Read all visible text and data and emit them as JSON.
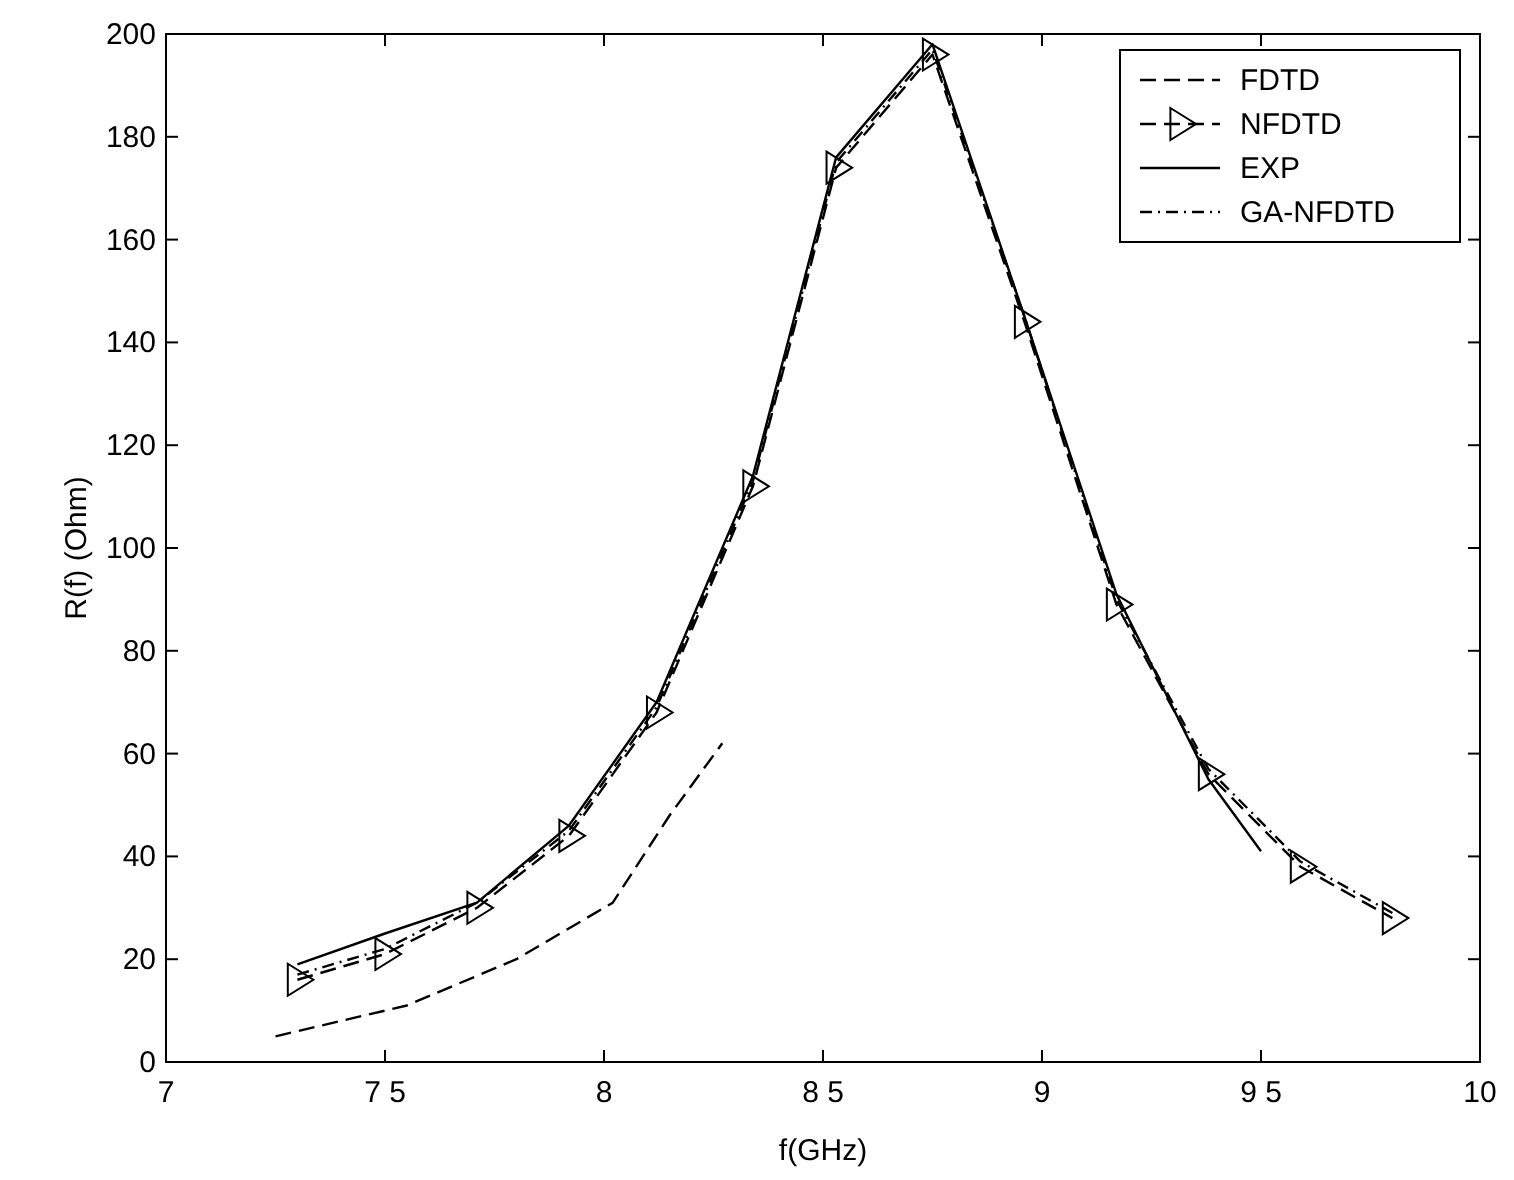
{
  "chart_data": {
    "type": "line",
    "xlabel": "f(GHz)",
    "ylabel": "R(f) (Ohm)",
    "xlim": [
      7,
      10
    ],
    "ylim": [
      0,
      200
    ],
    "xticks": [
      7,
      {
        "value": 7.5,
        "label": "7 5"
      },
      8,
      {
        "value": 8.5,
        "label": "8 5"
      },
      9,
      {
        "value": 9.5,
        "label": "9 5"
      },
      10
    ],
    "yticks": [
      0,
      20,
      40,
      60,
      80,
      100,
      120,
      140,
      160,
      180,
      200
    ],
    "grid": false,
    "legend": "top right",
    "series": [
      {
        "name": "FDTD",
        "color": "#000000",
        "line_style": "dashed",
        "marker": "none",
        "x": [
          7.25,
          7.4,
          7.55,
          7.8,
          8.02,
          8.15,
          8.27
        ],
        "values": [
          5,
          8,
          11,
          20,
          31,
          48,
          62
        ]
      },
      {
        "name": "NFDTD",
        "color": "#000000",
        "line_style": "dashed",
        "marker": "triangle",
        "x": [
          7.3,
          7.5,
          7.71,
          7.92,
          8.12,
          8.34,
          8.53,
          8.75,
          8.96,
          9.17,
          9.38,
          9.59,
          9.8
        ],
        "values": [
          16,
          21,
          30,
          44,
          68,
          112,
          174,
          196,
          144,
          89,
          56,
          38,
          28
        ]
      },
      {
        "name": "EXP",
        "color": "#000000",
        "line_style": "solid",
        "marker": "none",
        "x": [
          7.3,
          7.5,
          7.71,
          7.92,
          8.12,
          8.34,
          8.53,
          8.75,
          8.96,
          9.17,
          9.38,
          9.5
        ],
        "values": [
          19,
          25,
          31,
          46,
          70,
          114,
          176,
          198,
          145,
          91,
          55,
          41
        ]
      },
      {
        "name": "GA-NFDTD",
        "color": "#000000",
        "line_style": "dotted",
        "marker": "none",
        "x": [
          7.3,
          7.5,
          7.71,
          7.92,
          8.12,
          8.34,
          8.53,
          8.75,
          8.96,
          9.17,
          9.38,
          9.59,
          9.8
        ],
        "values": [
          17,
          22,
          31,
          45,
          69,
          113,
          175,
          197,
          145,
          90,
          57,
          39,
          29
        ]
      }
    ]
  }
}
